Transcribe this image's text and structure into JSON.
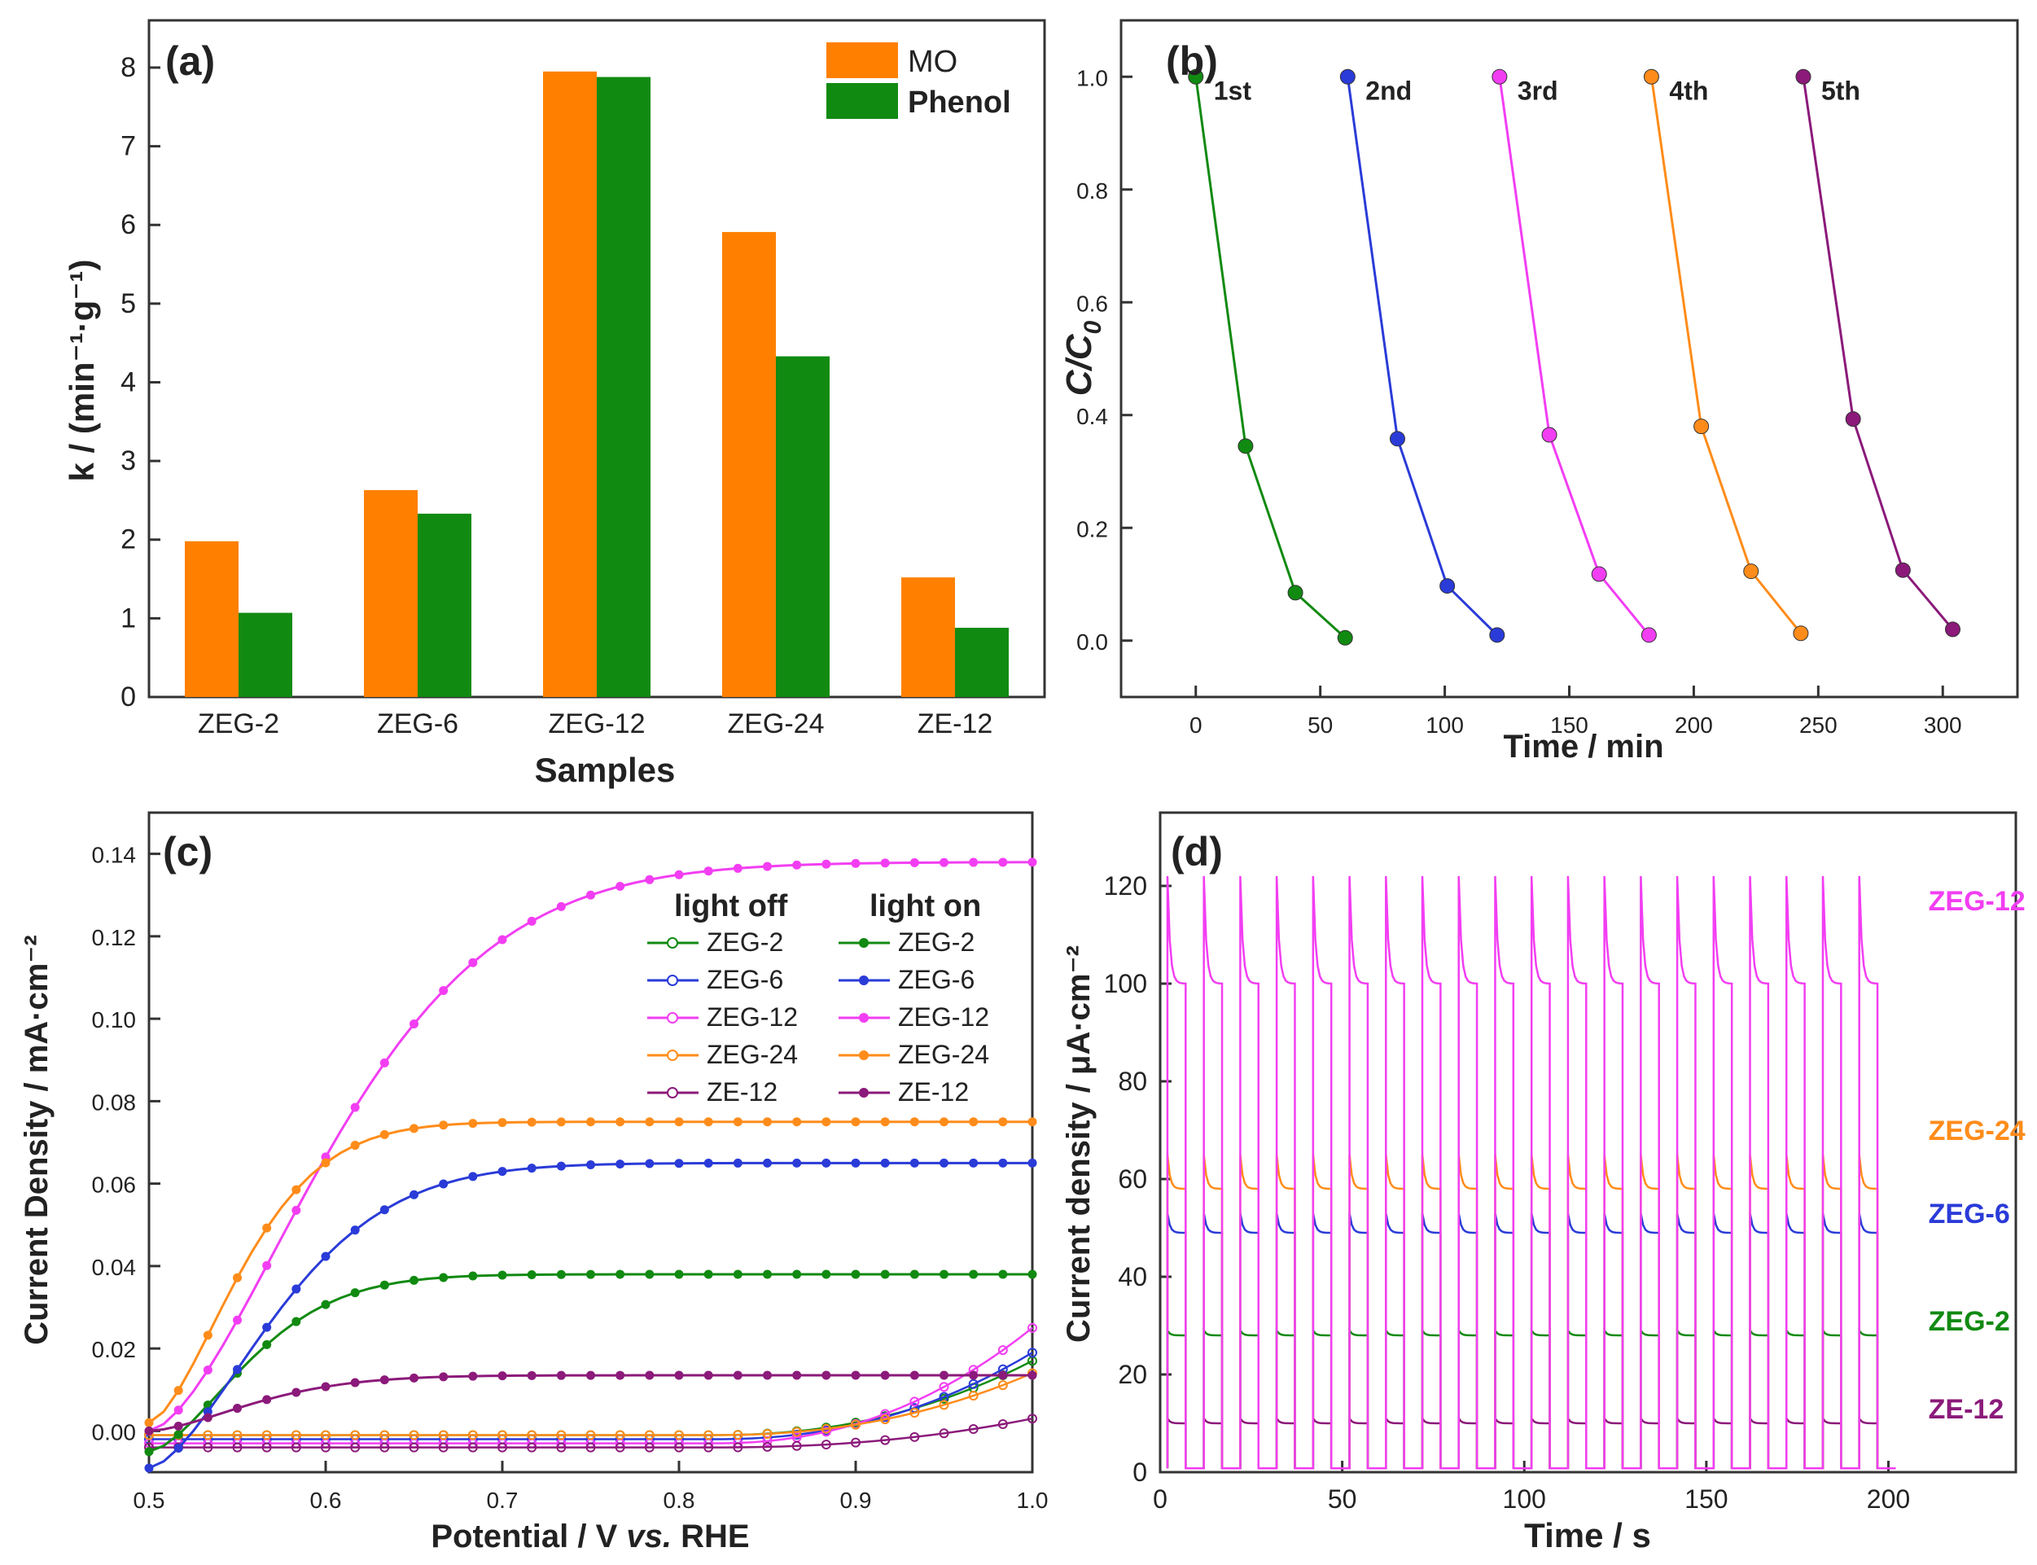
{
  "chart_data": [
    {
      "panel": "(a)",
      "type": "bar",
      "xlabel": "Samples",
      "ylabel": "k / (min⁻¹·g⁻¹)",
      "ylim": [
        0,
        8.6
      ],
      "yticks": [
        0,
        1,
        2,
        3,
        4,
        5,
        6,
        7,
        8
      ],
      "categories": [
        "ZEG-2",
        "ZEG-6",
        "ZEG-12",
        "ZEG-24",
        "ZE-12"
      ],
      "legend_position": "top-right",
      "series": [
        {
          "name": "MO",
          "color": "#ff8000",
          "values": [
            1.98,
            2.63,
            7.95,
            5.91,
            1.52
          ]
        },
        {
          "name": "Phenol",
          "color": "#118a11",
          "values": [
            1.07,
            2.33,
            7.88,
            4.33,
            0.88
          ]
        }
      ]
    },
    {
      "panel": "(b)",
      "type": "line",
      "xlabel": "Time / min",
      "ylabel": "C/C",
      "ylabel_sub": "0",
      "xlim": [
        -30,
        330
      ],
      "ylim": [
        -0.1,
        1.1
      ],
      "xticks": [
        0,
        50,
        100,
        150,
        200,
        250,
        300
      ],
      "yticks": [
        0.0,
        0.2,
        0.4,
        0.6,
        0.8,
        1.0
      ],
      "series": [
        {
          "name": "1st",
          "color": "#118a11",
          "x": [
            0,
            20,
            40,
            60
          ],
          "y": [
            1.0,
            0.345,
            0.085,
            0.005
          ]
        },
        {
          "name": "2nd",
          "color": "#2a3bd8",
          "x": [
            61,
            81,
            101,
            121
          ],
          "y": [
            1.0,
            0.358,
            0.097,
            0.01
          ]
        },
        {
          "name": "3rd",
          "color": "#f23ef2",
          "x": [
            122,
            142,
            162,
            182
          ],
          "y": [
            1.0,
            0.365,
            0.118,
            0.01
          ]
        },
        {
          "name": "4th",
          "color": "#ff8c1a",
          "x": [
            183,
            203,
            223,
            243
          ],
          "y": [
            1.0,
            0.38,
            0.123,
            0.013
          ]
        },
        {
          "name": "5th",
          "color": "#8b1a7a",
          "x": [
            244,
            264,
            284,
            304
          ],
          "y": [
            1.0,
            0.393,
            0.125,
            0.02
          ]
        }
      ]
    },
    {
      "panel": "(c)",
      "type": "line",
      "xlabel_parts": [
        "Potential / V ",
        "vs.",
        " RHE"
      ],
      "ylabel": "Current Density / mA·cm⁻²",
      "xlim": [
        0.5,
        1.0
      ],
      "ylim": [
        -0.01,
        0.15
      ],
      "xticks": [
        0.5,
        0.6,
        0.7,
        0.8,
        0.9,
        1.0
      ],
      "yticks": [
        0.0,
        0.02,
        0.04,
        0.06,
        0.08,
        0.1,
        0.12,
        0.14
      ],
      "legend_headers": [
        "light off",
        "light on"
      ],
      "light_on": [
        {
          "name": "ZEG-2",
          "color": "#118a11",
          "onset": 0.5,
          "start": -0.005,
          "plateau": 0.038,
          "k": 0.07
        },
        {
          "name": "ZEG-6",
          "color": "#2a3bd8",
          "onset": 0.5,
          "start": -0.009,
          "plateau": 0.065,
          "k": 0.09
        },
        {
          "name": "ZEG-12",
          "color": "#f23ef2",
          "onset": 0.5,
          "start": 0.0,
          "plateau": 0.138,
          "k": 0.13
        },
        {
          "name": "ZEG-24",
          "color": "#ff8c1a",
          "onset": 0.5,
          "start": 0.002,
          "plateau": 0.075,
          "k": 0.065
        },
        {
          "name": "ZE-12",
          "color": "#8b1a7a",
          "onset": 0.5,
          "start": 0.0,
          "plateau": 0.0135,
          "k": 0.075
        }
      ],
      "light_off": [
        {
          "name": "ZEG-2",
          "color": "#118a11",
          "base": -0.001,
          "end": 0.017
        },
        {
          "name": "ZEG-6",
          "color": "#2a3bd8",
          "base": -0.002,
          "end": 0.019
        },
        {
          "name": "ZEG-12",
          "color": "#f23ef2",
          "base": -0.003,
          "end": 0.025
        },
        {
          "name": "ZEG-24",
          "color": "#ff8c1a",
          "base": -0.001,
          "end": 0.014
        },
        {
          "name": "ZE-12",
          "color": "#8b1a7a",
          "base": -0.004,
          "end": 0.003
        }
      ]
    },
    {
      "panel": "(d)",
      "type": "line",
      "xlabel": "Time / s",
      "ylabel": "Current density / μA·cm⁻²",
      "xlim": [
        0,
        235
      ],
      "ylim": [
        0,
        135
      ],
      "xticks": [
        0,
        50,
        100,
        150,
        200
      ],
      "yticks": [
        0,
        20,
        40,
        60,
        80,
        100,
        120
      ],
      "period": 10,
      "on_duration": 5,
      "n_cycles": 20,
      "series": [
        {
          "name": "ZEG-12",
          "color": "#f23ef2",
          "on_level": 100,
          "spike": 122,
          "label_y": 117
        },
        {
          "name": "ZEG-24",
          "color": "#ff8c1a",
          "on_level": 58,
          "spike": 65,
          "label_y": 70
        },
        {
          "name": "ZEG-6",
          "color": "#2a3bd8",
          "on_level": 49,
          "spike": 53,
          "label_y": 53
        },
        {
          "name": "ZEG-2",
          "color": "#118a11",
          "on_level": 28,
          "spike": 29,
          "label_y": 31
        },
        {
          "name": "ZE-12",
          "color": "#8b1a7a",
          "on_level": 10,
          "spike": 11,
          "label_y": 13
        }
      ]
    }
  ]
}
